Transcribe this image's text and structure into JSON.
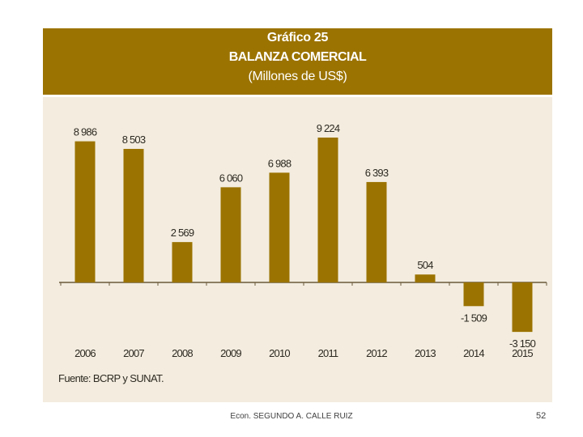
{
  "header": {
    "figure_number": "Gráfico 25",
    "title": "BALANZA COMERCIAL",
    "unit": "(Millones de US$)"
  },
  "chart_data": {
    "type": "bar",
    "title": "BALANZA COMERCIAL",
    "subtitle": "(Millones de US$)",
    "xlabel": "",
    "ylabel": "",
    "categories": [
      "2006",
      "2007",
      "2008",
      "2009",
      "2010",
      "2011",
      "2012",
      "2013",
      "2014",
      "2015"
    ],
    "values": [
      8986,
      8503,
      2569,
      6060,
      6988,
      9224,
      6393,
      504,
      -1509,
      -3150
    ],
    "value_labels": [
      "8 986",
      "8 503",
      "2 569",
      "6 060",
      "6 988",
      "9 224",
      "6 393",
      "504",
      "-1 509",
      "-3 150"
    ],
    "grid": false,
    "legend": "none"
  },
  "source": "Fuente: BCRP y SUNAT.",
  "footer": {
    "author": "Econ. SEGUNDO A. CALLE RUIZ",
    "page": "52"
  },
  "colors": {
    "header_bg": "#9b7300",
    "bar": "#9b7300",
    "chart_bg": "#f3ecdf",
    "text": "#2e2a22"
  }
}
